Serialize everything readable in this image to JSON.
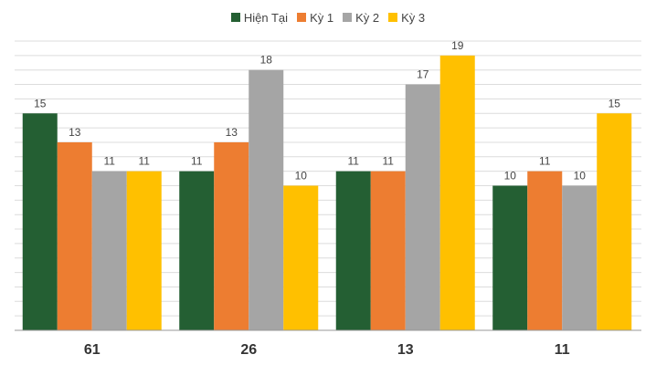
{
  "chart_data": {
    "type": "bar",
    "categories": [
      "61",
      "26",
      "13",
      "11"
    ],
    "series": [
      {
        "name": "Hiện Tại",
        "color": "#245f33",
        "values": [
          15,
          11,
          11,
          10
        ]
      },
      {
        "name": "Kỳ 1",
        "color": "#ed7d31",
        "values": [
          13,
          13,
          11,
          11
        ]
      },
      {
        "name": "Kỳ 2",
        "color": "#a5a5a5",
        "values": [
          11,
          18,
          17,
          10
        ]
      },
      {
        "name": "Kỳ 3",
        "color": "#ffc000",
        "values": [
          11,
          10,
          19,
          15
        ]
      }
    ],
    "ylim": [
      0,
      20
    ],
    "grid": true,
    "legend_position": "top-center",
    "data_labels": true
  }
}
